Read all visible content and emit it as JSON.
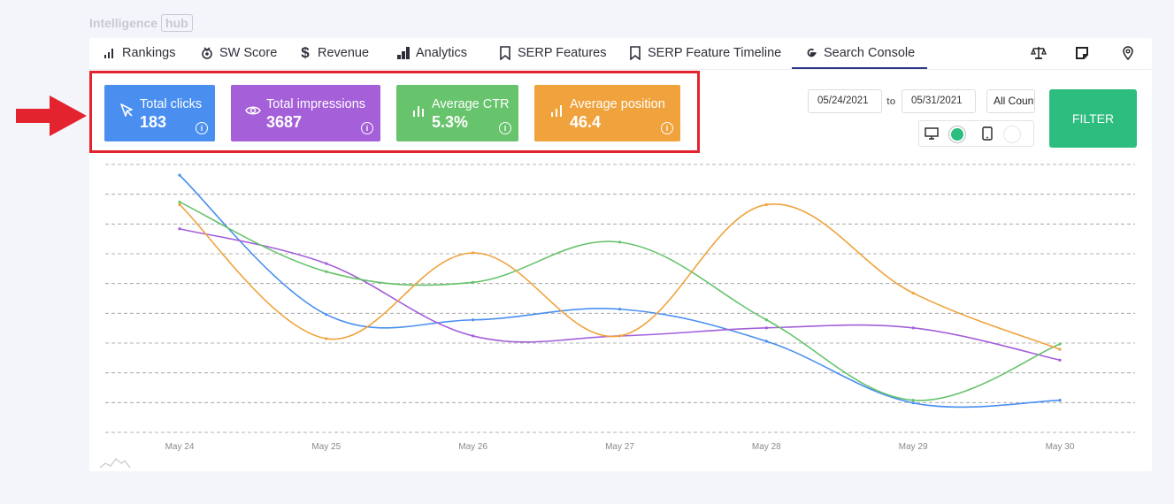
{
  "brand": {
    "name": "Intelligence",
    "badge": "hub"
  },
  "tabs": [
    {
      "label": "Rankings",
      "icon": "bar-chart-icon"
    },
    {
      "label": "SW Score",
      "icon": "medal-icon"
    },
    {
      "label": "Revenue",
      "icon": "dollar-icon"
    },
    {
      "label": "Analytics",
      "icon": "analytics-icon"
    },
    {
      "label": "SERP Features",
      "icon": "bookmark-icon"
    },
    {
      "label": "SERP Feature Timeline",
      "icon": "bookmark-icon"
    },
    {
      "label": "Search Console",
      "icon": "google-icon",
      "active": true
    }
  ],
  "metrics": [
    {
      "label": "Total clicks",
      "value": "183",
      "color": "#4a8ff0",
      "icon": "cursor-icon"
    },
    {
      "label": "Total impressions",
      "value": "3687",
      "color": "#a45fd9",
      "icon": "eye-icon"
    },
    {
      "label": "Average CTR",
      "value": "5.3%",
      "color": "#67c36c",
      "icon": "bar-chart-icon"
    },
    {
      "label": "Average position",
      "value": "46.4",
      "color": "#f0a23c",
      "icon": "bar-chart-icon"
    }
  ],
  "filters": {
    "date_from": "05/24/2021",
    "to_label": "to",
    "date_to": "05/31/2021",
    "country": "All Countries",
    "filter_label": "FILTER"
  },
  "chart_data": {
    "type": "line",
    "categories": [
      "May 24",
      "May 25",
      "May 26",
      "May 27",
      "May 28",
      "May 29",
      "May 30"
    ],
    "grid": true,
    "series": [
      {
        "color": "#4a8ff0",
        "values": [
          0.04,
          0.56,
          0.58,
          0.54,
          0.66,
          0.89,
          0.88
        ]
      },
      {
        "color": "#a45fd9",
        "values": [
          0.24,
          0.37,
          0.64,
          0.64,
          0.61,
          0.61,
          0.73
        ]
      },
      {
        "color": "#67c36c",
        "values": [
          0.14,
          0.4,
          0.44,
          0.29,
          0.58,
          0.88,
          0.67
        ]
      },
      {
        "color": "#f0a23c",
        "values": [
          0.15,
          0.65,
          0.33,
          0.64,
          0.15,
          0.48,
          0.69
        ]
      }
    ]
  }
}
